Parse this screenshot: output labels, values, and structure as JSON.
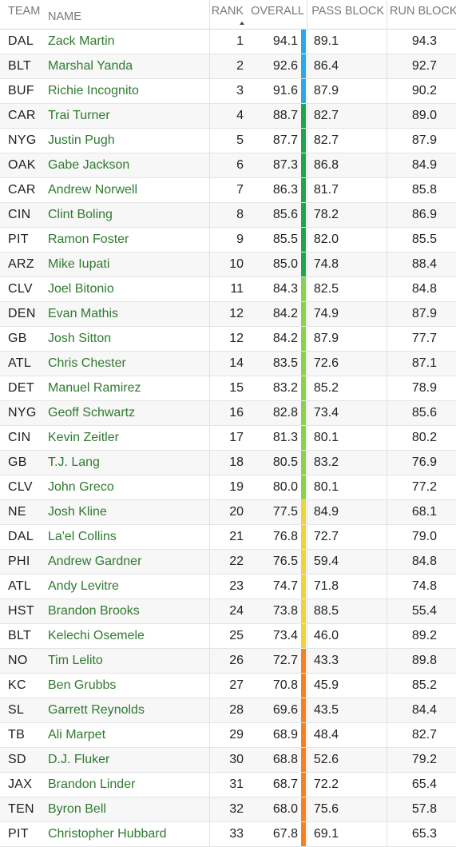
{
  "header": {
    "team": "TEAM",
    "name": "NAME",
    "rank": "RANK",
    "overall": "OVERALL",
    "pass_block": "PASS BLOCK",
    "run_block": "RUN BLOCK"
  },
  "colors": {
    "blue": "#29a9e6",
    "dark_green": "#20a44e",
    "light_green": "#8bd14a",
    "yellow": "#f0d33a",
    "orange": "#f5821f",
    "name_text": "#2f7a2f"
  },
  "rows": [
    {
      "team": "DAL",
      "name": "Zack Martin",
      "rank": "1",
      "overall": "94.1",
      "pass": "89.1",
      "run": "94.3",
      "tier": "blue"
    },
    {
      "team": "BLT",
      "name": "Marshal Yanda",
      "rank": "2",
      "overall": "92.6",
      "pass": "86.4",
      "run": "92.7",
      "tier": "blue"
    },
    {
      "team": "BUF",
      "name": "Richie Incognito",
      "rank": "3",
      "overall": "91.6",
      "pass": "87.9",
      "run": "90.2",
      "tier": "blue"
    },
    {
      "team": "CAR",
      "name": "Trai Turner",
      "rank": "4",
      "overall": "88.7",
      "pass": "82.7",
      "run": "89.0",
      "tier": "dark_green"
    },
    {
      "team": "NYG",
      "name": "Justin Pugh",
      "rank": "5",
      "overall": "87.7",
      "pass": "82.7",
      "run": "87.9",
      "tier": "dark_green"
    },
    {
      "team": "OAK",
      "name": "Gabe Jackson",
      "rank": "6",
      "overall": "87.3",
      "pass": "86.8",
      "run": "84.9",
      "tier": "dark_green"
    },
    {
      "team": "CAR",
      "name": "Andrew Norwell",
      "rank": "7",
      "overall": "86.3",
      "pass": "81.7",
      "run": "85.8",
      "tier": "dark_green"
    },
    {
      "team": "CIN",
      "name": "Clint Boling",
      "rank": "8",
      "overall": "85.6",
      "pass": "78.2",
      "run": "86.9",
      "tier": "dark_green"
    },
    {
      "team": "PIT",
      "name": "Ramon Foster",
      "rank": "9",
      "overall": "85.5",
      "pass": "82.0",
      "run": "85.5",
      "tier": "dark_green"
    },
    {
      "team": "ARZ",
      "name": "Mike Iupati",
      "rank": "10",
      "overall": "85.0",
      "pass": "74.8",
      "run": "88.4",
      "tier": "dark_green"
    },
    {
      "team": "CLV",
      "name": "Joel Bitonio",
      "rank": "11",
      "overall": "84.3",
      "pass": "82.5",
      "run": "84.8",
      "tier": "light_green"
    },
    {
      "team": "DEN",
      "name": "Evan Mathis",
      "rank": "12",
      "overall": "84.2",
      "pass": "74.9",
      "run": "87.9",
      "tier": "light_green"
    },
    {
      "team": "GB",
      "name": "Josh Sitton",
      "rank": "12",
      "overall": "84.2",
      "pass": "87.9",
      "run": "77.7",
      "tier": "light_green"
    },
    {
      "team": "ATL",
      "name": "Chris Chester",
      "rank": "14",
      "overall": "83.5",
      "pass": "72.6",
      "run": "87.1",
      "tier": "light_green"
    },
    {
      "team": "DET",
      "name": "Manuel Ramirez",
      "rank": "15",
      "overall": "83.2",
      "pass": "85.2",
      "run": "78.9",
      "tier": "light_green"
    },
    {
      "team": "NYG",
      "name": "Geoff Schwartz",
      "rank": "16",
      "overall": "82.8",
      "pass": "73.4",
      "run": "85.6",
      "tier": "light_green"
    },
    {
      "team": "CIN",
      "name": "Kevin Zeitler",
      "rank": "17",
      "overall": "81.3",
      "pass": "80.1",
      "run": "80.2",
      "tier": "light_green"
    },
    {
      "team": "GB",
      "name": "T.J. Lang",
      "rank": "18",
      "overall": "80.5",
      "pass": "83.2",
      "run": "76.9",
      "tier": "light_green"
    },
    {
      "team": "CLV",
      "name": "John Greco",
      "rank": "19",
      "overall": "80.0",
      "pass": "80.1",
      "run": "77.2",
      "tier": "light_green"
    },
    {
      "team": "NE",
      "name": "Josh Kline",
      "rank": "20",
      "overall": "77.5",
      "pass": "84.9",
      "run": "68.1",
      "tier": "yellow"
    },
    {
      "team": "DAL",
      "name": "La'el Collins",
      "rank": "21",
      "overall": "76.8",
      "pass": "72.7",
      "run": "79.0",
      "tier": "yellow"
    },
    {
      "team": "PHI",
      "name": "Andrew Gardner",
      "rank": "22",
      "overall": "76.5",
      "pass": "59.4",
      "run": "84.8",
      "tier": "yellow"
    },
    {
      "team": "ATL",
      "name": "Andy Levitre",
      "rank": "23",
      "overall": "74.7",
      "pass": "71.8",
      "run": "74.8",
      "tier": "yellow"
    },
    {
      "team": "HST",
      "name": "Brandon Brooks",
      "rank": "24",
      "overall": "73.8",
      "pass": "88.5",
      "run": "55.4",
      "tier": "yellow"
    },
    {
      "team": "BLT",
      "name": "Kelechi Osemele",
      "rank": "25",
      "overall": "73.4",
      "pass": "46.0",
      "run": "89.2",
      "tier": "yellow"
    },
    {
      "team": "NO",
      "name": "Tim Lelito",
      "rank": "26",
      "overall": "72.7",
      "pass": "43.3",
      "run": "89.8",
      "tier": "orange"
    },
    {
      "team": "KC",
      "name": "Ben Grubbs",
      "rank": "27",
      "overall": "70.8",
      "pass": "45.9",
      "run": "85.2",
      "tier": "orange"
    },
    {
      "team": "SL",
      "name": "Garrett Reynolds",
      "rank": "28",
      "overall": "69.6",
      "pass": "43.5",
      "run": "84.4",
      "tier": "orange"
    },
    {
      "team": "TB",
      "name": "Ali Marpet",
      "rank": "29",
      "overall": "68.9",
      "pass": "48.4",
      "run": "82.7",
      "tier": "orange"
    },
    {
      "team": "SD",
      "name": "D.J. Fluker",
      "rank": "30",
      "overall": "68.8",
      "pass": "52.6",
      "run": "79.2",
      "tier": "orange"
    },
    {
      "team": "JAX",
      "name": "Brandon Linder",
      "rank": "31",
      "overall": "68.7",
      "pass": "72.2",
      "run": "65.4",
      "tier": "orange"
    },
    {
      "team": "TEN",
      "name": "Byron Bell",
      "rank": "32",
      "overall": "68.0",
      "pass": "75.6",
      "run": "57.8",
      "tier": "orange"
    },
    {
      "team": "PIT",
      "name": "Christopher Hubbard",
      "rank": "33",
      "overall": "67.8",
      "pass": "69.1",
      "run": "65.3",
      "tier": "orange"
    }
  ]
}
